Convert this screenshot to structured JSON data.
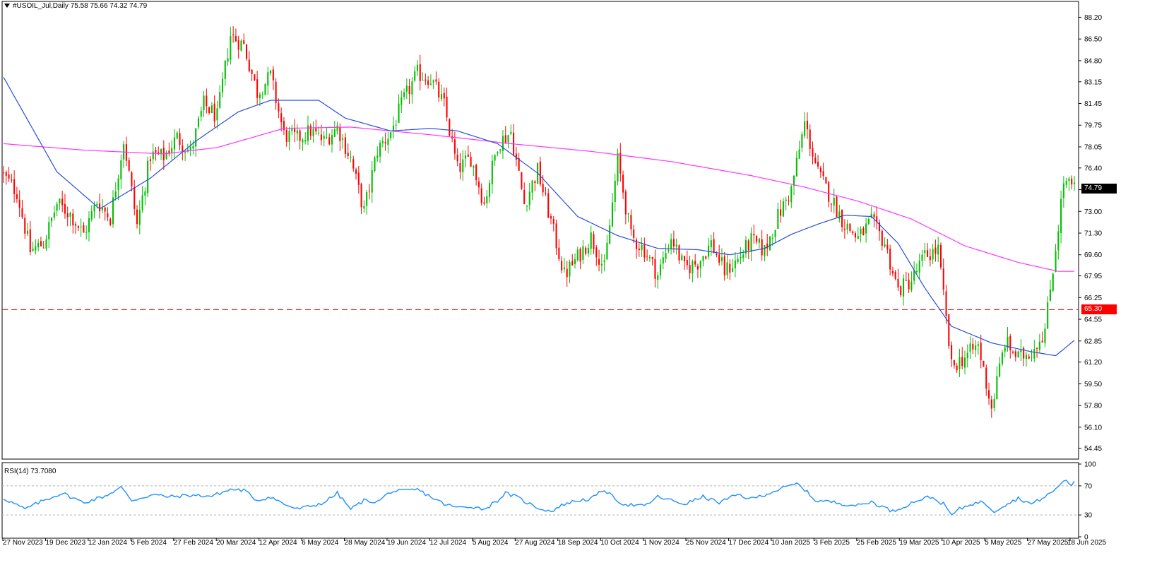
{
  "header": {
    "symbol_line": "#USOIL_Jul,Daily  75.58 75.66 74.32 74.79",
    "rsi_line": "RSI(14) 73.7080"
  },
  "price_tags": {
    "last": "74.79",
    "level": "65.30"
  },
  "colors": {
    "bull": "#00c000",
    "bear": "#ff0000",
    "ma_fast": "#2a4fd6",
    "ma_slow": "#ff33ff",
    "rsi": "#1e90ff",
    "level": "#ff0000"
  },
  "chart_data": [
    {
      "type": "candlestick",
      "title": "#USOIL_Jul,Daily",
      "ylim": [
        53.6,
        89.0
      ],
      "y_ticks": [
        "88.20",
        "86.50",
        "84.80",
        "83.15",
        "81.45",
        "79.75",
        "78.05",
        "76.40",
        "74.70",
        "73.00",
        "71.30",
        "69.60",
        "67.95",
        "66.25",
        "64.55",
        "62.85",
        "61.20",
        "59.50",
        "57.80",
        "56.10",
        "54.45"
      ],
      "x_ticks": [
        "27 Nov 2023",
        "19 Dec 2023",
        "12 Jan 2024",
        "5 Feb 2024",
        "27 Feb 2024",
        "20 Mar 2024",
        "12 Apr 2024",
        "6 May 2024",
        "28 May 2024",
        "19 Jun 2024",
        "12 Jul 2024",
        "5 Aug 2024",
        "27 Aug 2024",
        "18 Sep 2024",
        "10 Oct 2024",
        "1 Nov 2024",
        "25 Nov 2024",
        "17 Dec 2024",
        "10 Jan 2025",
        "3 Feb 2025",
        "25 Feb 2025",
        "19 Mar 2025",
        "10 Apr 2025",
        "5 May 2025",
        "27 May 2025",
        "18 Jun 2025"
      ],
      "horizontal_level": 65.3,
      "last_close": 74.79,
      "close_anchors": [
        [
          0,
          75.8
        ],
        [
          5,
          74.5
        ],
        [
          10,
          69.9
        ],
        [
          15,
          70.5
        ],
        [
          20,
          73.6
        ],
        [
          25,
          72.8
        ],
        [
          30,
          71.2
        ],
        [
          35,
          73.8
        ],
        [
          40,
          72.5
        ],
        [
          45,
          78.6
        ],
        [
          50,
          71.9
        ],
        [
          55,
          77.4
        ],
        [
          60,
          77.3
        ],
        [
          65,
          78.8
        ],
        [
          70,
          77.6
        ],
        [
          75,
          81.4
        ],
        [
          80,
          80.4
        ],
        [
          85,
          86.8
        ],
        [
          90,
          86.0
        ],
        [
          95,
          82.3
        ],
        [
          100,
          83.6
        ],
        [
          105,
          79.0
        ],
        [
          110,
          78.7
        ],
        [
          115,
          79.3
        ],
        [
          120,
          78.5
        ],
        [
          125,
          79.6
        ],
        [
          130,
          77.1
        ],
        [
          135,
          73.0
        ],
        [
          140,
          77.8
        ],
        [
          145,
          79.2
        ],
        [
          150,
          81.8
        ],
        [
          155,
          83.8
        ],
        [
          160,
          83.4
        ],
        [
          165,
          81.3
        ],
        [
          170,
          76.3
        ],
        [
          175,
          77.2
        ],
        [
          180,
          73.6
        ],
        [
          185,
          78.3
        ],
        [
          190,
          79.2
        ],
        [
          195,
          73.6
        ],
        [
          200,
          76.2
        ],
        [
          205,
          72.2
        ],
        [
          210,
          68.0
        ],
        [
          215,
          69.4
        ],
        [
          220,
          71.0
        ],
        [
          225,
          68.5
        ],
        [
          230,
          77.0
        ],
        [
          235,
          71.0
        ],
        [
          240,
          70.0
        ],
        [
          245,
          68.0
        ],
        [
          250,
          71.0
        ],
        [
          255,
          68.5
        ],
        [
          260,
          69.0
        ],
        [
          265,
          70.5
        ],
        [
          270,
          68.3
        ],
        [
          275,
          69.2
        ],
        [
          280,
          70.7
        ],
        [
          285,
          69.9
        ],
        [
          290,
          72.6
        ],
        [
          295,
          74.7
        ],
        [
          300,
          79.9
        ],
        [
          305,
          76.0
        ],
        [
          310,
          74.0
        ],
        [
          315,
          72.0
        ],
        [
          320,
          70.9
        ],
        [
          325,
          72.2
        ],
        [
          330,
          70.5
        ],
        [
          335,
          66.8
        ],
        [
          340,
          67.6
        ],
        [
          345,
          69.5
        ],
        [
          350,
          70.0
        ],
        [
          355,
          60.8
        ],
        [
          360,
          61.6
        ],
        [
          365,
          62.5
        ],
        [
          370,
          57.6
        ],
        [
          375,
          62.8
        ],
        [
          380,
          61.5
        ],
        [
          385,
          62.1
        ],
        [
          390,
          63.7
        ],
        [
          394,
          70.2
        ],
        [
          397,
          75.3
        ],
        [
          401,
          74.8
        ]
      ],
      "series": [
        {
          "name": "",
          "values_from": "close_anchors",
          "display": "candles"
        },
        {
          "name": "",
          "color": "#2a4fd6",
          "values": [
            [
              0,
              83.5
            ],
            [
              20,
              76.1
            ],
            [
              36,
              73.2
            ],
            [
              55,
              75.6
            ],
            [
              72,
              78.5
            ],
            [
              88,
              80.8
            ],
            [
              100,
              81.7
            ],
            [
              118,
              81.7
            ],
            [
              128,
              80.3
            ],
            [
              145,
              79.3
            ],
            [
              160,
              79.5
            ],
            [
              170,
              79.3
            ],
            [
              185,
              78.3
            ],
            [
              200,
              76.0
            ],
            [
              215,
              72.6
            ],
            [
              230,
              71.1
            ],
            [
              245,
              70.1
            ],
            [
              260,
              70.0
            ],
            [
              272,
              69.6
            ],
            [
              285,
              70.1
            ],
            [
              295,
              71.2
            ],
            [
              305,
              72.0
            ],
            [
              315,
              72.7
            ],
            [
              325,
              72.6
            ],
            [
              335,
              70.5
            ],
            [
              345,
              67.0
            ],
            [
              355,
              64.0
            ],
            [
              370,
              62.7
            ],
            [
              385,
              62.0
            ],
            [
              394,
              61.7
            ],
            [
              401,
              62.9
            ]
          ]
        },
        {
          "name": "",
          "color": "#ff33ff",
          "values": [
            [
              0,
              78.3
            ],
            [
              30,
              77.8
            ],
            [
              60,
              77.5
            ],
            [
              80,
              78.0
            ],
            [
              105,
              79.5
            ],
            [
              130,
              79.6
            ],
            [
              160,
              79.0
            ],
            [
              190,
              78.3
            ],
            [
              220,
              77.7
            ],
            [
              250,
              76.9
            ],
            [
              280,
              75.8
            ],
            [
              300,
              74.9
            ],
            [
              320,
              73.8
            ],
            [
              340,
              72.4
            ],
            [
              360,
              70.3
            ],
            [
              380,
              69.0
            ],
            [
              395,
              68.3
            ],
            [
              401,
              68.3
            ]
          ]
        }
      ]
    },
    {
      "type": "line",
      "title": "RSI(14) 73.7080",
      "ylim": [
        0,
        100
      ],
      "y_ticks": [
        "100",
        "70",
        "30",
        "0"
      ],
      "levels": [
        70,
        30
      ],
      "series": [
        {
          "name": "",
          "values": [
            [
              0,
              53
            ],
            [
              8,
              38
            ],
            [
              15,
              50
            ],
            [
              22,
              60
            ],
            [
              30,
              47
            ],
            [
              38,
              56
            ],
            [
              44,
              68
            ],
            [
              48,
              50
            ],
            [
              56,
              58
            ],
            [
              62,
              55
            ],
            [
              70,
              57
            ],
            [
              78,
              56
            ],
            [
              85,
              65
            ],
            [
              90,
              64
            ],
            [
              95,
              50
            ],
            [
              100,
              55
            ],
            [
              105,
              45
            ],
            [
              110,
              38
            ],
            [
              115,
              42
            ],
            [
              120,
              47
            ],
            [
              125,
              60
            ],
            [
              130,
              38
            ],
            [
              135,
              50
            ],
            [
              140,
              48
            ],
            [
              145,
              62
            ],
            [
              150,
              63
            ],
            [
              155,
              65
            ],
            [
              160,
              55
            ],
            [
              165,
              45
            ],
            [
              170,
              40
            ],
            [
              175,
              42
            ],
            [
              180,
              38
            ],
            [
              185,
              50
            ],
            [
              188,
              60
            ],
            [
              192,
              55
            ],
            [
              197,
              45
            ],
            [
              200,
              40
            ],
            [
              205,
              35
            ],
            [
              210,
              45
            ],
            [
              215,
              50
            ],
            [
              220,
              52
            ],
            [
              225,
              65
            ],
            [
              228,
              55
            ],
            [
              232,
              45
            ],
            [
              240,
              42
            ],
            [
              245,
              55
            ],
            [
              250,
              50
            ],
            [
              255,
              45
            ],
            [
              262,
              55
            ],
            [
              268,
              47
            ],
            [
              275,
              58
            ],
            [
              280,
              52
            ],
            [
              285,
              58
            ],
            [
              292,
              67
            ],
            [
              297,
              73
            ],
            [
              300,
              65
            ],
            [
              304,
              50
            ],
            [
              310,
              48
            ],
            [
              315,
              45
            ],
            [
              320,
              43
            ],
            [
              325,
              48
            ],
            [
              330,
              40
            ],
            [
              333,
              35
            ],
            [
              338,
              43
            ],
            [
              342,
              50
            ],
            [
              347,
              55
            ],
            [
              352,
              45
            ],
            [
              355,
              30
            ],
            [
              358,
              38
            ],
            [
              362,
              45
            ],
            [
              367,
              48
            ],
            [
              371,
              35
            ],
            [
              374,
              42
            ],
            [
              380,
              53
            ],
            [
              385,
              45
            ],
            [
              390,
              55
            ],
            [
              394,
              65
            ],
            [
              397,
              78
            ],
            [
              400,
              72
            ],
            [
              401,
              74
            ]
          ]
        }
      ]
    }
  ]
}
